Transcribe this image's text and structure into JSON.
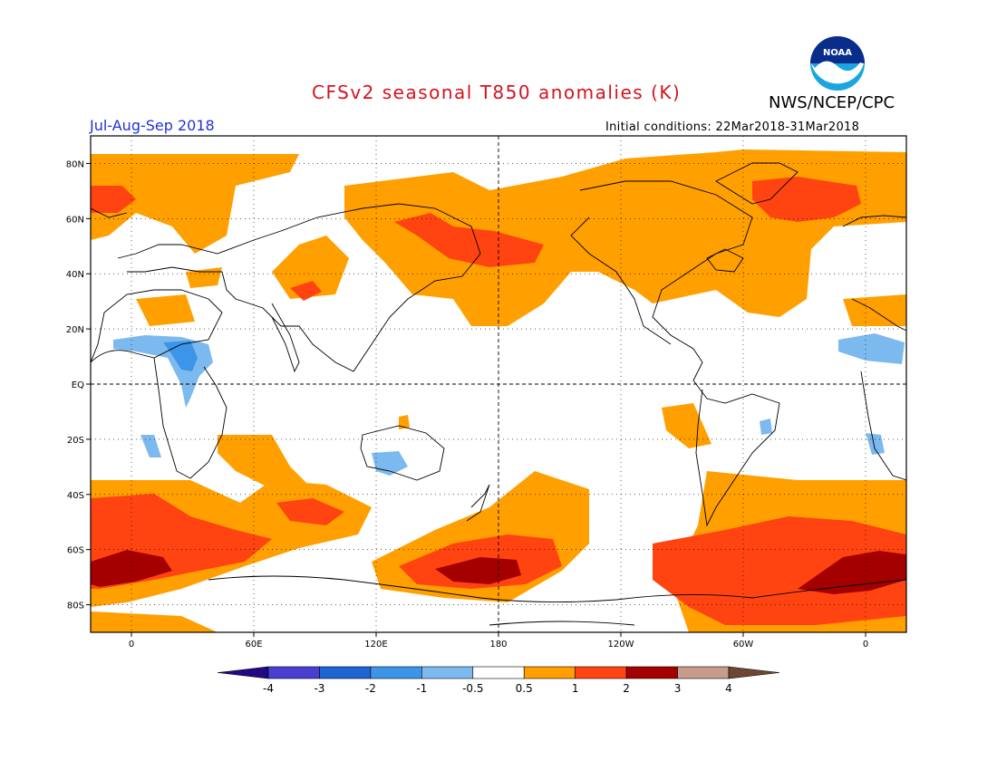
{
  "header": {
    "title": "CFSv2 seasonal T850 anomalies (K)",
    "agency": "NWS/NCEP/CPC",
    "season": "Jul-Aug-Sep 2018",
    "initial_conditions": "Initial conditions: 22Mar2018-31Mar2018"
  },
  "logo": {
    "icon": "noaa-logo",
    "text": "NOAA"
  },
  "map": {
    "projection": "cylindrical equidistant",
    "lon_range": [
      -20,
      380
    ],
    "lat_range": [
      -90,
      90
    ],
    "lat_ticks": [
      {
        "lat": 80,
        "label": "80N"
      },
      {
        "lat": 60,
        "label": "60N"
      },
      {
        "lat": 40,
        "label": "40N"
      },
      {
        "lat": 20,
        "label": "20N"
      },
      {
        "lat": 0,
        "label": "EQ"
      },
      {
        "lat": -20,
        "label": "20S"
      },
      {
        "lat": -40,
        "label": "40S"
      },
      {
        "lat": -60,
        "label": "60S"
      },
      {
        "lat": -80,
        "label": "80S"
      }
    ],
    "lon_ticks": [
      {
        "lon": 0,
        "label": "0"
      },
      {
        "lon": 60,
        "label": "60E"
      },
      {
        "lon": 120,
        "label": "120E"
      },
      {
        "lon": 180,
        "label": "180"
      },
      {
        "lon": 240,
        "label": "120W"
      },
      {
        "lon": 300,
        "label": "60W"
      },
      {
        "lon": 360,
        "label": "0"
      }
    ]
  },
  "colorbar": {
    "colors": [
      "#230882",
      "#4a3fd0",
      "#1e64d2",
      "#3c95e8",
      "#7cb9ef",
      "#ffffff",
      "#ff9f00",
      "#ff4411",
      "#a50000",
      "#c79c8c",
      "#6e4734"
    ],
    "labels": [
      "-4",
      "-3",
      "-2",
      "-1",
      "-0.5",
      "0.5",
      "1",
      "2",
      "3",
      "4"
    ]
  }
}
